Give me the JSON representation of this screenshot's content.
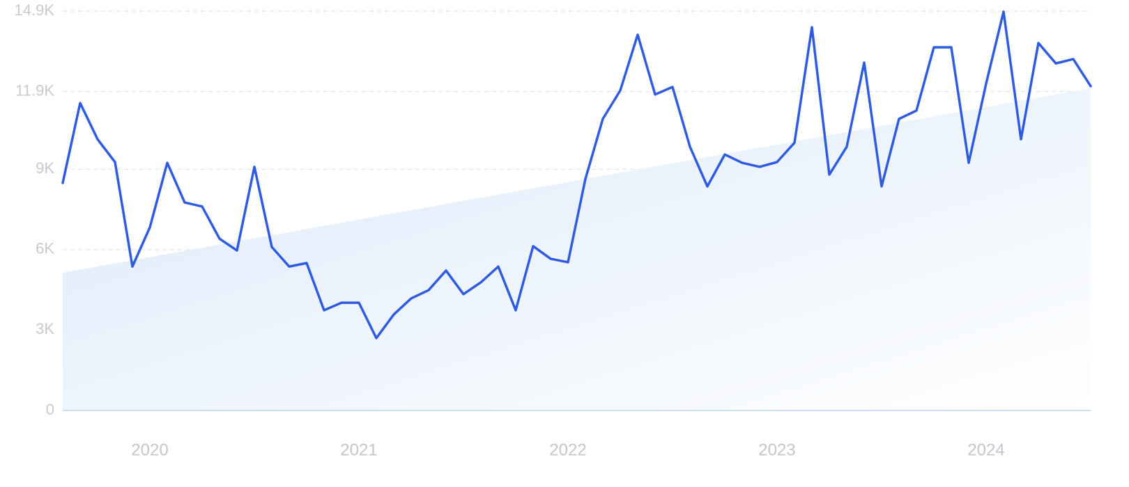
{
  "chart_data": {
    "type": "line",
    "categories": [
      null,
      null,
      null,
      null,
      null,
      "2020",
      null,
      null,
      null,
      null,
      null,
      null,
      null,
      null,
      null,
      null,
      null,
      "2021",
      null,
      null,
      null,
      null,
      null,
      null,
      null,
      null,
      null,
      null,
      null,
      "2022",
      null,
      null,
      null,
      null,
      null,
      null,
      null,
      null,
      null,
      null,
      null,
      "2023",
      null,
      null,
      null,
      null,
      null,
      null,
      null,
      null,
      null,
      null,
      null,
      "2024",
      null,
      null,
      null,
      null,
      null,
      null
    ],
    "series": [
      {
        "color": "#2f5be0",
        "values": [
          8490,
          11470,
          10120,
          9270,
          5370,
          6830,
          9240,
          7760,
          7610,
          6410,
          5970,
          9090,
          6100,
          5370,
          5500,
          3740,
          4020,
          4020,
          2700,
          3580,
          4180,
          4490,
          5220,
          4340,
          4780,
          5370,
          3740,
          6130,
          5660,
          5530,
          8640,
          10880,
          11940,
          14020,
          11790,
          12070,
          9840,
          8360,
          9550,
          9240,
          9090,
          9270,
          9990,
          14300,
          8800,
          9840,
          12980,
          8360,
          10880,
          11190,
          13550,
          13550,
          9240,
          12200,
          14880,
          10120,
          13710,
          12950,
          13110,
          12100
        ]
      }
    ],
    "trend": {
      "color": "#dbe9f9",
      "values": [
        5140,
        12020
      ]
    },
    "ylim": [
      0,
      14900
    ],
    "yticks": [
      0,
      {
        "value": 3000,
        "label": "3K"
      },
      {
        "value": 6000,
        "label": "6K"
      },
      {
        "value": 9000,
        "label": "9K"
      },
      {
        "value": 11900,
        "label": "11.9K"
      },
      {
        "value": 14900,
        "label": "14.9K"
      }
    ],
    "grid": true
  }
}
